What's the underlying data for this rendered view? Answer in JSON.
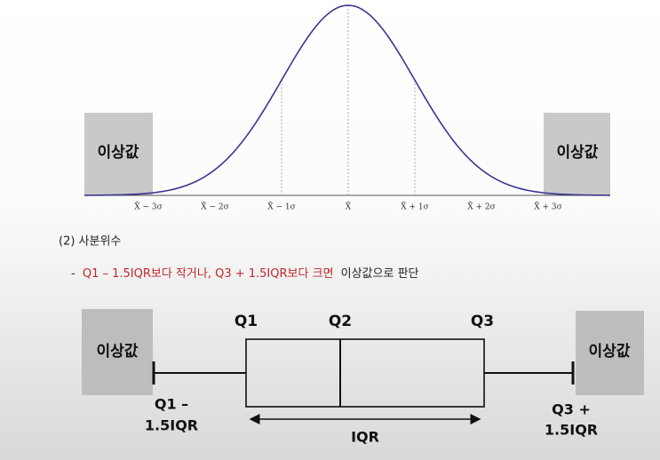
{
  "normal_curve": {
    "outlier_left": "이상값",
    "outlier_right": "이상값",
    "axis_labels": [
      "X̄ − 3σ",
      "X̄ − 2σ",
      "X̄ − 1σ",
      "X̄",
      "X̄ + 1σ",
      "X̄ + 2σ",
      "X̄ + 3σ"
    ]
  },
  "section": {
    "heading": "(2) 사분위수",
    "rule": {
      "prefix": "-",
      "condition": "Q1 – 1.5IQR보다 작거나, Q3 + 1.5IQR보다 크면",
      "conclusion": "이상값으로 판단"
    }
  },
  "boxplot": {
    "outlier_left": "이상값",
    "outlier_right": "이상값",
    "q1": "Q1",
    "q2": "Q2",
    "q3": "Q3",
    "lower_fence": [
      "Q1 –",
      "1.5IQR"
    ],
    "upper_fence": [
      "Q3 +",
      "1.5IQR"
    ],
    "iqr": "IQR"
  }
}
